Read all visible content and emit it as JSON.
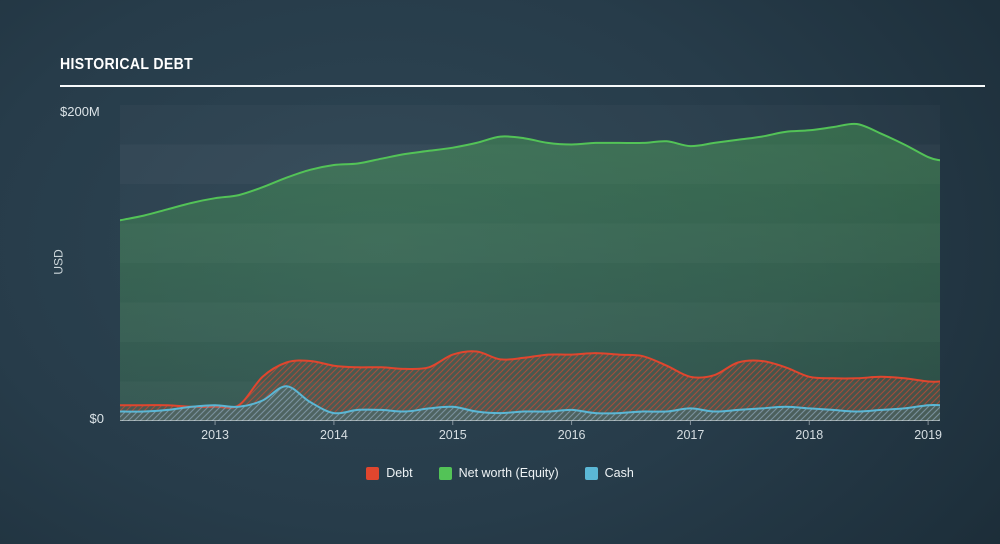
{
  "header": {
    "title": "HISTORICAL DEBT"
  },
  "y_axis": {
    "top_label": "$200M",
    "bottom_label": "$0",
    "axis_title": "USD"
  },
  "chart_data": {
    "type": "area",
    "title": "Historical Debt",
    "ylabel": "USD",
    "ylim": [
      0,
      200
    ],
    "y_tick_labels": [
      "$0",
      "$200M"
    ],
    "x_range": [
      2012.2,
      2019.1
    ],
    "x_ticks": [
      "2013",
      "2014",
      "2015",
      "2016",
      "2017",
      "2018",
      "2019"
    ],
    "band_size": 25,
    "grid": "horizontal-bands",
    "legend_position": "bottom",
    "x": [
      2012.2,
      2012.4,
      2012.6,
      2012.8,
      2013.0,
      2013.2,
      2013.4,
      2013.6,
      2013.8,
      2014.0,
      2014.2,
      2014.4,
      2014.6,
      2014.8,
      2015.0,
      2015.2,
      2015.4,
      2015.6,
      2015.8,
      2016.0,
      2016.2,
      2016.4,
      2016.6,
      2016.8,
      2017.0,
      2017.2,
      2017.4,
      2017.6,
      2017.8,
      2018.0,
      2018.2,
      2018.4,
      2018.6,
      2018.8,
      2019.0,
      2019.1
    ],
    "series": [
      {
        "name": "Debt",
        "color": "#e0462e",
        "values": [
          10,
          10,
          10,
          9,
          9,
          10,
          28,
          37,
          38,
          35,
          34,
          34,
          33,
          34,
          42,
          44,
          39,
          40,
          42,
          42,
          43,
          42,
          41,
          35,
          28,
          29,
          37,
          38,
          34,
          28,
          27,
          27,
          28,
          27,
          25,
          25
        ]
      },
      {
        "name": "Net worth (Equity)",
        "color": "#53c357",
        "values": [
          127,
          130,
          134,
          138,
          141,
          143,
          148,
          154,
          159,
          162,
          163,
          166,
          169,
          171,
          173,
          176,
          180,
          179,
          176,
          175,
          176,
          176,
          176,
          177,
          174,
          176,
          178,
          180,
          183,
          184,
          186,
          188,
          182,
          175,
          167,
          165
        ]
      },
      {
        "name": "Cash",
        "color": "#5bb7d5",
        "values": [
          6,
          6,
          7,
          9,
          10,
          9,
          13,
          22,
          12,
          5,
          7,
          7,
          6,
          8,
          9,
          6,
          5,
          6,
          6,
          7,
          5,
          5,
          6,
          6,
          8,
          6,
          7,
          8,
          9,
          8,
          7,
          6,
          7,
          8,
          10,
          10
        ]
      }
    ]
  }
}
